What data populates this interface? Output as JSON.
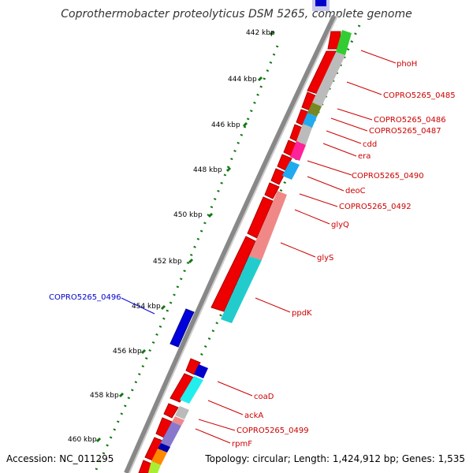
{
  "title": "Coprothermobacter proteolyticus DSM 5265, complete genome",
  "footer": {
    "accession": "Accession: NC_011295",
    "topology": "Topology: circular; Length: 1,424,912 bp; Genes: 1,535"
  },
  "ruler": {
    "labels": [
      "442 kbp",
      "444 kbp",
      "446 kbp",
      "448 kbp",
      "450 kbp",
      "452 kbp",
      "454 kbp",
      "456 kbp",
      "458 kbp",
      "460 kbp"
    ]
  },
  "genes": [
    {
      "name": "phoH",
      "color": "#cc0000"
    },
    {
      "name": "COPRO5265_0485",
      "color": "#cc0000"
    },
    {
      "name": "COPRO5265_0486",
      "color": "#cc0000"
    },
    {
      "name": "COPRO5265_0487",
      "color": "#cc0000"
    },
    {
      "name": "cdd",
      "color": "#cc0000"
    },
    {
      "name": "era",
      "color": "#cc0000"
    },
    {
      "name": "COPRO5265_0490",
      "color": "#cc0000"
    },
    {
      "name": "deoC",
      "color": "#cc0000"
    },
    {
      "name": "COPRO5265_0492",
      "color": "#cc0000"
    },
    {
      "name": "glyQ",
      "color": "#cc0000"
    },
    {
      "name": "glyS",
      "color": "#cc0000"
    },
    {
      "name": "ppdK",
      "color": "#cc0000"
    },
    {
      "name": "COPRO5265_0496",
      "color": "#0000cc"
    },
    {
      "name": "coaD",
      "color": "#cc0000"
    },
    {
      "name": "ackA",
      "color": "#cc0000"
    },
    {
      "name": "COPRO5265_0499",
      "color": "#cc0000"
    },
    {
      "name": "rpmF",
      "color": "#cc0000"
    }
  ]
}
